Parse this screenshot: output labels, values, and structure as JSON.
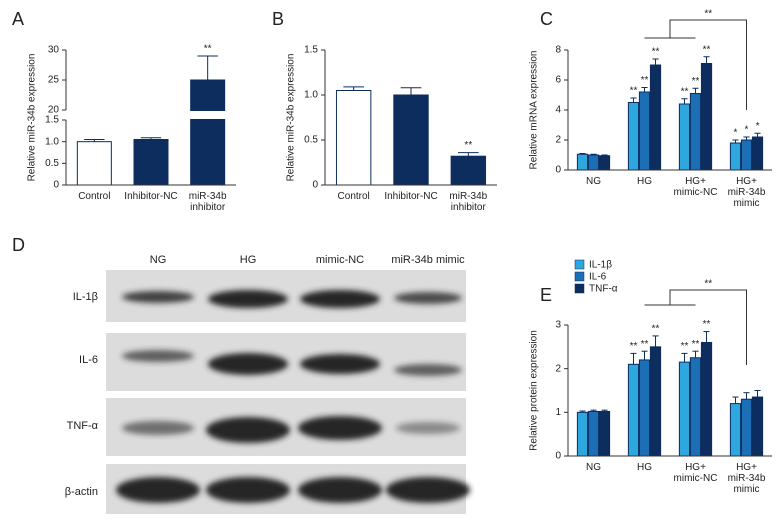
{
  "chart_data": [
    {
      "type": "bar",
      "label": "A",
      "ylabel": "Relative miR-34b expression",
      "categories": [
        "Control",
        "Inhibitor-NC",
        "miR-34b\ninhibitor"
      ],
      "values": [
        1.0,
        1.05,
        25
      ],
      "errors": [
        0.05,
        0.04,
        4
      ],
      "colors": [
        "#ffffff",
        "#0d2d5e",
        "#0d2d5e"
      ],
      "significance": [
        null,
        null,
        "**"
      ],
      "ylim": [
        0,
        30
      ],
      "ybreak": [
        1.5,
        20
      ],
      "yticks": [
        0,
        0.5,
        {
          "value": 1,
          "label": "1.0"
        },
        1.5,
        20,
        25,
        30
      ]
    },
    {
      "type": "bar",
      "label": "B",
      "ylabel": "Relative miR-34b expression",
      "categories": [
        "Control",
        "Inhibitor-NC",
        "miR-34b\ninhibitor"
      ],
      "values": [
        1.05,
        1.0,
        0.32
      ],
      "errors": [
        0.04,
        0.08,
        0.04
      ],
      "colors": [
        "#ffffff",
        "#0d2d5e",
        "#0d2d5e"
      ],
      "significance": [
        null,
        null,
        "**"
      ],
      "ylim": [
        0,
        1.5
      ],
      "yticks": [
        0,
        0.5,
        {
          "value": 1,
          "label": "1.0"
        },
        1.5
      ]
    },
    {
      "type": "bar",
      "label": "C",
      "ylabel": "Relative mRNA expression",
      "categories": [
        "NG",
        "HG",
        "HG+\nmimic-NC",
        "HG+\nmiR-34b\nmimic"
      ],
      "series": [
        {
          "name": "IL-1β",
          "color": "#2ea6de",
          "values": [
            1.05,
            4.5,
            4.4,
            1.8
          ],
          "errors": [
            0.05,
            0.3,
            0.35,
            0.2
          ],
          "significance": [
            null,
            "**",
            "**",
            "*"
          ]
        },
        {
          "name": "IL-6",
          "color": "#1d6fb5",
          "values": [
            1.0,
            5.2,
            5.1,
            2.0
          ],
          "errors": [
            0.05,
            0.3,
            0.35,
            0.2
          ],
          "significance": [
            null,
            "**",
            "**",
            "*"
          ]
        },
        {
          "name": "TNF-α",
          "color": "#0d2d5e",
          "values": [
            0.95,
            7.0,
            7.1,
            2.2
          ],
          "errors": [
            0.05,
            0.4,
            0.45,
            0.25
          ],
          "significance": [
            null,
            "**",
            "**",
            "*"
          ]
        }
      ],
      "comparison": "**",
      "legend": "bottom-left",
      "ylim": [
        0,
        8
      ],
      "yticks": [
        0,
        2,
        4,
        6,
        8
      ]
    },
    {
      "type": "bar",
      "label": "E",
      "ylabel": "Relative protein expression",
      "categories": [
        "NG",
        "HG",
        "HG+\nmimic-NC",
        "HG+\nmiR-34b\nmimic"
      ],
      "series": [
        {
          "name": "IL-1β",
          "color": "#2ea6de",
          "values": [
            1.0,
            2.1,
            2.15,
            1.2
          ],
          "errors": [
            0.03,
            0.25,
            0.2,
            0.15
          ],
          "significance": [
            null,
            "**",
            "**",
            null
          ]
        },
        {
          "name": "IL-6",
          "color": "#1d6fb5",
          "values": [
            1.02,
            2.2,
            2.25,
            1.3
          ],
          "errors": [
            0.03,
            0.2,
            0.15,
            0.15
          ],
          "significance": [
            null,
            "**",
            "**",
            null
          ]
        },
        {
          "name": "TNF-α",
          "color": "#0d2d5e",
          "values": [
            1.02,
            2.5,
            2.6,
            1.35
          ],
          "errors": [
            0.03,
            0.25,
            0.25,
            0.15
          ],
          "significance": [
            null,
            "**",
            "**",
            null
          ]
        }
      ],
      "comparison": "**",
      "ylim": [
        0,
        3
      ],
      "yticks": [
        0,
        1,
        2,
        3
      ]
    }
  ],
  "blot": {
    "label": "D",
    "columns": [
      "NG",
      "HG",
      "mimic-NC",
      "miR-34b mimic"
    ],
    "rows": [
      "IL-1β",
      "IL-6",
      "TNF-α",
      "β-actin"
    ]
  }
}
